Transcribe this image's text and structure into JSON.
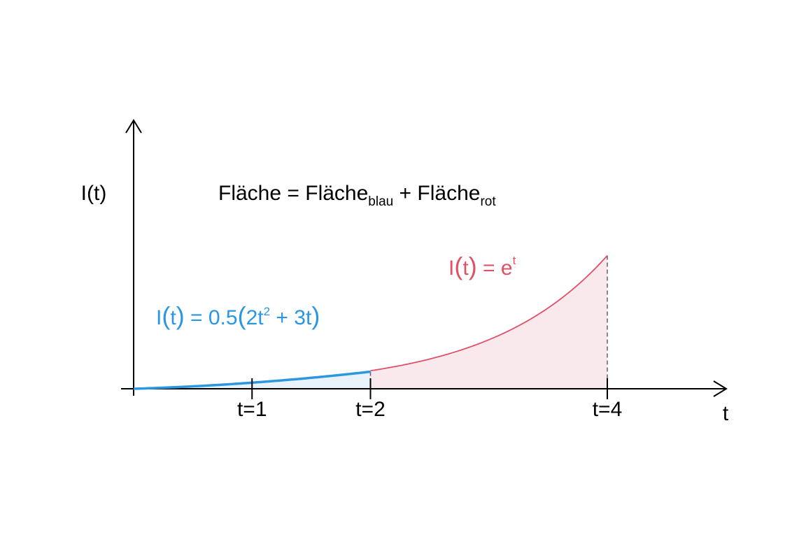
{
  "colors": {
    "axis": "#000000",
    "blue": "#2b97e0",
    "blue_fill": "#e8f2f8",
    "red": "#e05067",
    "red_fill": "#f9e8ec",
    "dashed": "#6b6b6b"
  },
  "labels": {
    "y_axis": "I(t)",
    "x_axis": "t",
    "area_word": "Fläche",
    "area_eq": " = ",
    "area_plus": " + ",
    "sub_blue": "blau",
    "sub_red": "rot",
    "blue_I": "I",
    "blue_t": "t",
    "blue_eq": " = 0.5",
    "blue_2t": "2t",
    "blue_sq": "2",
    "blue_rest": " + 3t",
    "red_I": "I",
    "red_t": "t",
    "red_eq": " = e",
    "red_exp": "t",
    "paren_open": "(",
    "paren_close": ")"
  },
  "chart_data": {
    "type": "area",
    "xlabel": "t",
    "ylabel": "I(t)",
    "ticks": [
      {
        "t": 1,
        "label": "t=1"
      },
      {
        "t": 2,
        "label": "t=2"
      },
      {
        "t": 4,
        "label": "t=4"
      }
    ],
    "series": [
      {
        "formula": "I(t) = 0.5(2t² + 3t)",
        "t_range": [
          0,
          2
        ],
        "color": "blue",
        "shaded": true
      },
      {
        "formula": "I(t) = e^t",
        "t_range": [
          2,
          4
        ],
        "color": "red",
        "shaded": true
      }
    ],
    "annotation": "Fläche = Fläche_blau + Fläche_rot"
  }
}
